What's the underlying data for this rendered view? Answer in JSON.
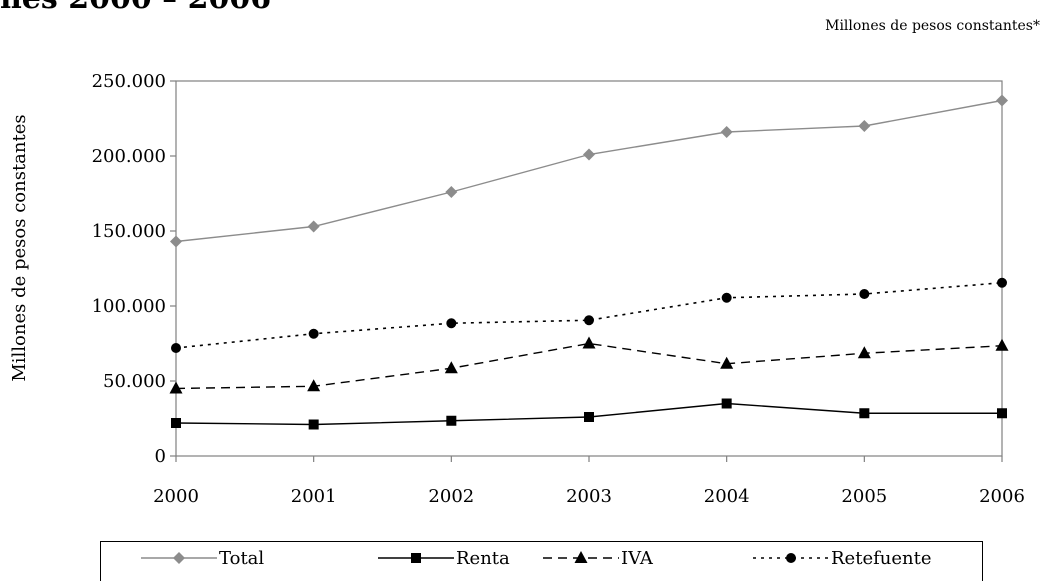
{
  "title": "nes 2000 – 2006",
  "subtitle": "Millones de pesos constantes*",
  "chart_data": {
    "type": "line",
    "x": [
      "2000",
      "2001",
      "2002",
      "2003",
      "2004",
      "2005",
      "2006"
    ],
    "ylabel": "Millones de pesos constantes",
    "xlabel": "",
    "ylim": [
      0,
      250000
    ],
    "yticks": [
      "0",
      "50.000",
      "100.000",
      "150.000",
      "200.000",
      "250.000"
    ],
    "legend_position": "bottom",
    "grid": false,
    "series": [
      {
        "name": "Total",
        "color": "#8c8c8c",
        "marker": "diamond",
        "dash": "solid",
        "values": [
          143000,
          153000,
          176000,
          201000,
          216000,
          220000,
          237000
        ]
      },
      {
        "name": "Renta",
        "color": "#000000",
        "marker": "square",
        "dash": "solid",
        "values": [
          22000,
          21000,
          23500,
          26000,
          35000,
          28500,
          28500
        ]
      },
      {
        "name": "IVA",
        "color": "#000000",
        "marker": "triangle",
        "dash": "dashed",
        "values": [
          45000,
          46500,
          58500,
          75000,
          61500,
          68500,
          73500
        ]
      },
      {
        "name": "Retefuente",
        "color": "#000000",
        "marker": "circle",
        "dash": "dotted",
        "values": [
          72000,
          81500,
          88500,
          90500,
          105500,
          108000,
          115500
        ]
      }
    ]
  }
}
